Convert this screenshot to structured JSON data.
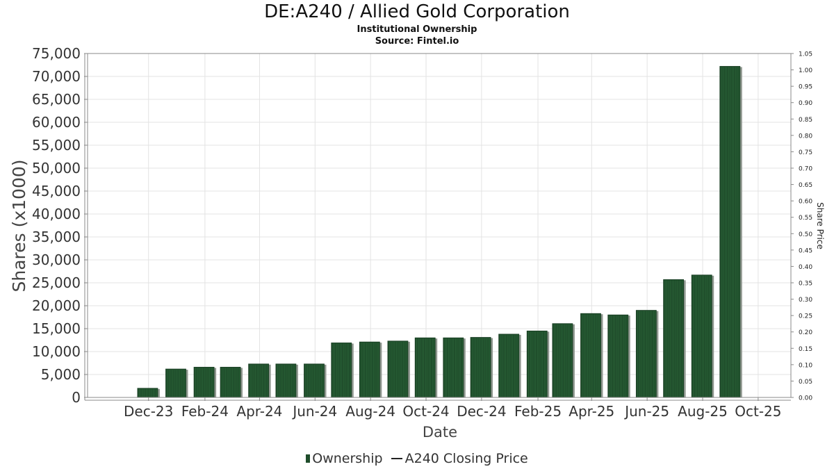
{
  "header": {
    "title": "DE:A240 / Allied Gold Corporation",
    "subtitle1": "Institutional Ownership",
    "subtitle2": "Source: Fintel.io"
  },
  "legend": {
    "ownership": "Ownership",
    "price": "A240 Closing Price"
  },
  "colors": {
    "bar": "#1f4d2b",
    "bar_shadow": "#8f978f",
    "grid": "#e3e3e3",
    "axis": "#888888"
  },
  "chart_data": {
    "type": "bar",
    "title": "DE:A240 / Allied Gold Corporation",
    "xlabel": "Date",
    "ylabel": "Shares (x1000)",
    "y2label": "Share Price",
    "ylim": [
      0,
      75000
    ],
    "y2lim": [
      0,
      1.05
    ],
    "grid": true,
    "legend_position": "bottom",
    "x_ticks": [
      "Dec-23",
      "Feb-24",
      "Apr-24",
      "Jun-24",
      "Aug-24",
      "Oct-24",
      "Dec-24",
      "Feb-25",
      "Apr-25",
      "Jun-25",
      "Aug-25",
      "Oct-25"
    ],
    "y_ticks": [
      "0",
      "5,000",
      "10,000",
      "15,000",
      "20,000",
      "25,000",
      "30,000",
      "35,000",
      "40,000",
      "45,000",
      "50,000",
      "55,000",
      "60,000",
      "65,000",
      "70,000",
      "75,000"
    ],
    "y2_ticks": [
      "0.00",
      "0.05",
      "0.10",
      "0.15",
      "0.20",
      "0.25",
      "0.30",
      "0.35",
      "0.40",
      "0.45",
      "0.50",
      "0.55",
      "0.60",
      "0.65",
      "0.70",
      "0.75",
      "0.80",
      "0.85",
      "0.90",
      "0.95",
      "1.00",
      "1.05"
    ],
    "series": [
      {
        "name": "Ownership",
        "x": [
          "2023-11-30",
          "2023-12-31",
          "2024-01-31",
          "2024-02-29",
          "2024-03-31",
          "2024-04-30",
          "2024-05-31",
          "2024-06-30",
          "2024-07-31",
          "2024-08-31",
          "2024-09-30",
          "2024-10-31",
          "2024-11-30",
          "2024-12-31",
          "2025-01-31",
          "2025-02-28",
          "2025-03-31",
          "2025-04-30",
          "2025-05-31",
          "2025-06-30",
          "2025-07-31",
          "2025-08-31"
        ],
        "values": [
          2000,
          6200,
          6600,
          6600,
          7300,
          7300,
          7300,
          11900,
          12100,
          12300,
          13000,
          13000,
          13100,
          13800,
          14500,
          16100,
          18300,
          18000,
          19000,
          25700,
          26700,
          72200
        ]
      },
      {
        "name": "A240 Closing Price",
        "x": [],
        "values": []
      }
    ]
  }
}
